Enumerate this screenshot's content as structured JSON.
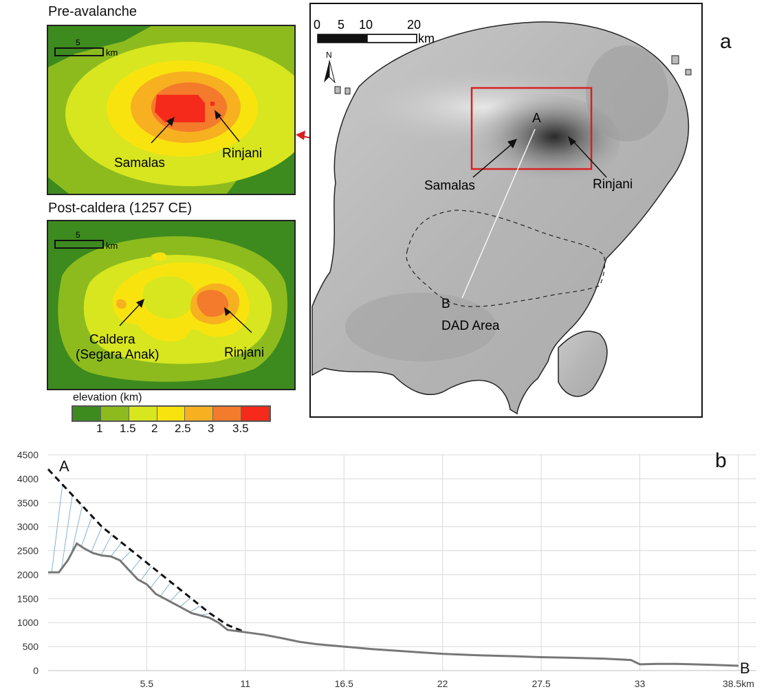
{
  "panel_a": {
    "letter": "a",
    "inset_pre": {
      "title": "Pre-avalanche",
      "scale_number": "5",
      "scale_unit": "km",
      "labels": {
        "samalas": "Samalas",
        "rinjani": "Rinjani"
      }
    },
    "inset_post": {
      "title": "Post-caldera (1257 CE)",
      "scale_number": "5",
      "scale_unit": "km",
      "labels": {
        "caldera_line1": "Caldera",
        "caldera_line2": "(Segara Anak)",
        "rinjani": "Rinjani"
      }
    },
    "legend": {
      "title": "elevation (km)",
      "ticks": [
        "1",
        "1.5",
        "2",
        "2.5",
        "3",
        "3.5"
      ],
      "colors": [
        "#3d8a1e",
        "#8dbb1e",
        "#d7e61f",
        "#f9e30f",
        "#f7b020",
        "#f47a2c",
        "#f52a1a"
      ]
    },
    "main_map": {
      "scale_ticks": [
        "0",
        "5",
        "10",
        "20"
      ],
      "scale_unit": "km",
      "north_label": "N",
      "point_a": "A",
      "point_b": "B",
      "samalas": "Samalas",
      "rinjani": "Rinjani",
      "dad_area": "DAD Area"
    }
  },
  "panel_b": {
    "letter": "b",
    "point_a": "A",
    "point_b": "B"
  },
  "chart_data": {
    "type": "line",
    "ylim": [
      0,
      4500
    ],
    "xlim": [
      0,
      39.5
    ],
    "y_ticks": [
      "0",
      "500",
      "1000",
      "1500",
      "2000",
      "2500",
      "3000",
      "3500",
      "4000",
      "4500"
    ],
    "x_ticks": [
      "5.5",
      "11",
      "16.5",
      "22",
      "27.5",
      "33",
      "38.5km"
    ],
    "x_tick_values": [
      5.5,
      11,
      16.5,
      22,
      27.5,
      33,
      38.5
    ],
    "grid": true,
    "series": [
      {
        "style": "dashed",
        "color": "#111111",
        "x": [
          0,
          1,
          2,
          3,
          4,
          5,
          6,
          7,
          8,
          9,
          10,
          11
        ],
        "y": [
          4200,
          3800,
          3400,
          3000,
          2700,
          2400,
          2100,
          1800,
          1500,
          1200,
          950,
          800
        ]
      },
      {
        "style": "solid",
        "color": "#777777",
        "x": [
          0,
          0.6,
          1.1,
          1.6,
          2.0,
          2.5,
          3.0,
          3.5,
          4.0,
          4.5,
          5.0,
          5.5,
          6.0,
          6.5,
          7.0,
          7.5,
          8.0,
          8.5,
          9.0,
          9.5,
          10.0,
          11.0,
          12.0,
          13.0,
          14.0,
          15.0,
          16.5,
          18.0,
          20.0,
          22.0,
          24.0,
          26.0,
          27.5,
          29.0,
          31.0,
          32.5,
          33.0,
          34.0,
          35.0,
          36.0,
          37.0,
          38.5
        ],
        "y": [
          2050,
          2050,
          2300,
          2650,
          2550,
          2450,
          2400,
          2380,
          2300,
          2100,
          1900,
          1800,
          1600,
          1500,
          1400,
          1300,
          1200,
          1150,
          1100,
          1000,
          850,
          800,
          750,
          680,
          600,
          550,
          500,
          450,
          400,
          350,
          320,
          300,
          280,
          270,
          250,
          220,
          130,
          140,
          140,
          130,
          120,
          100
        ]
      }
    ]
  }
}
